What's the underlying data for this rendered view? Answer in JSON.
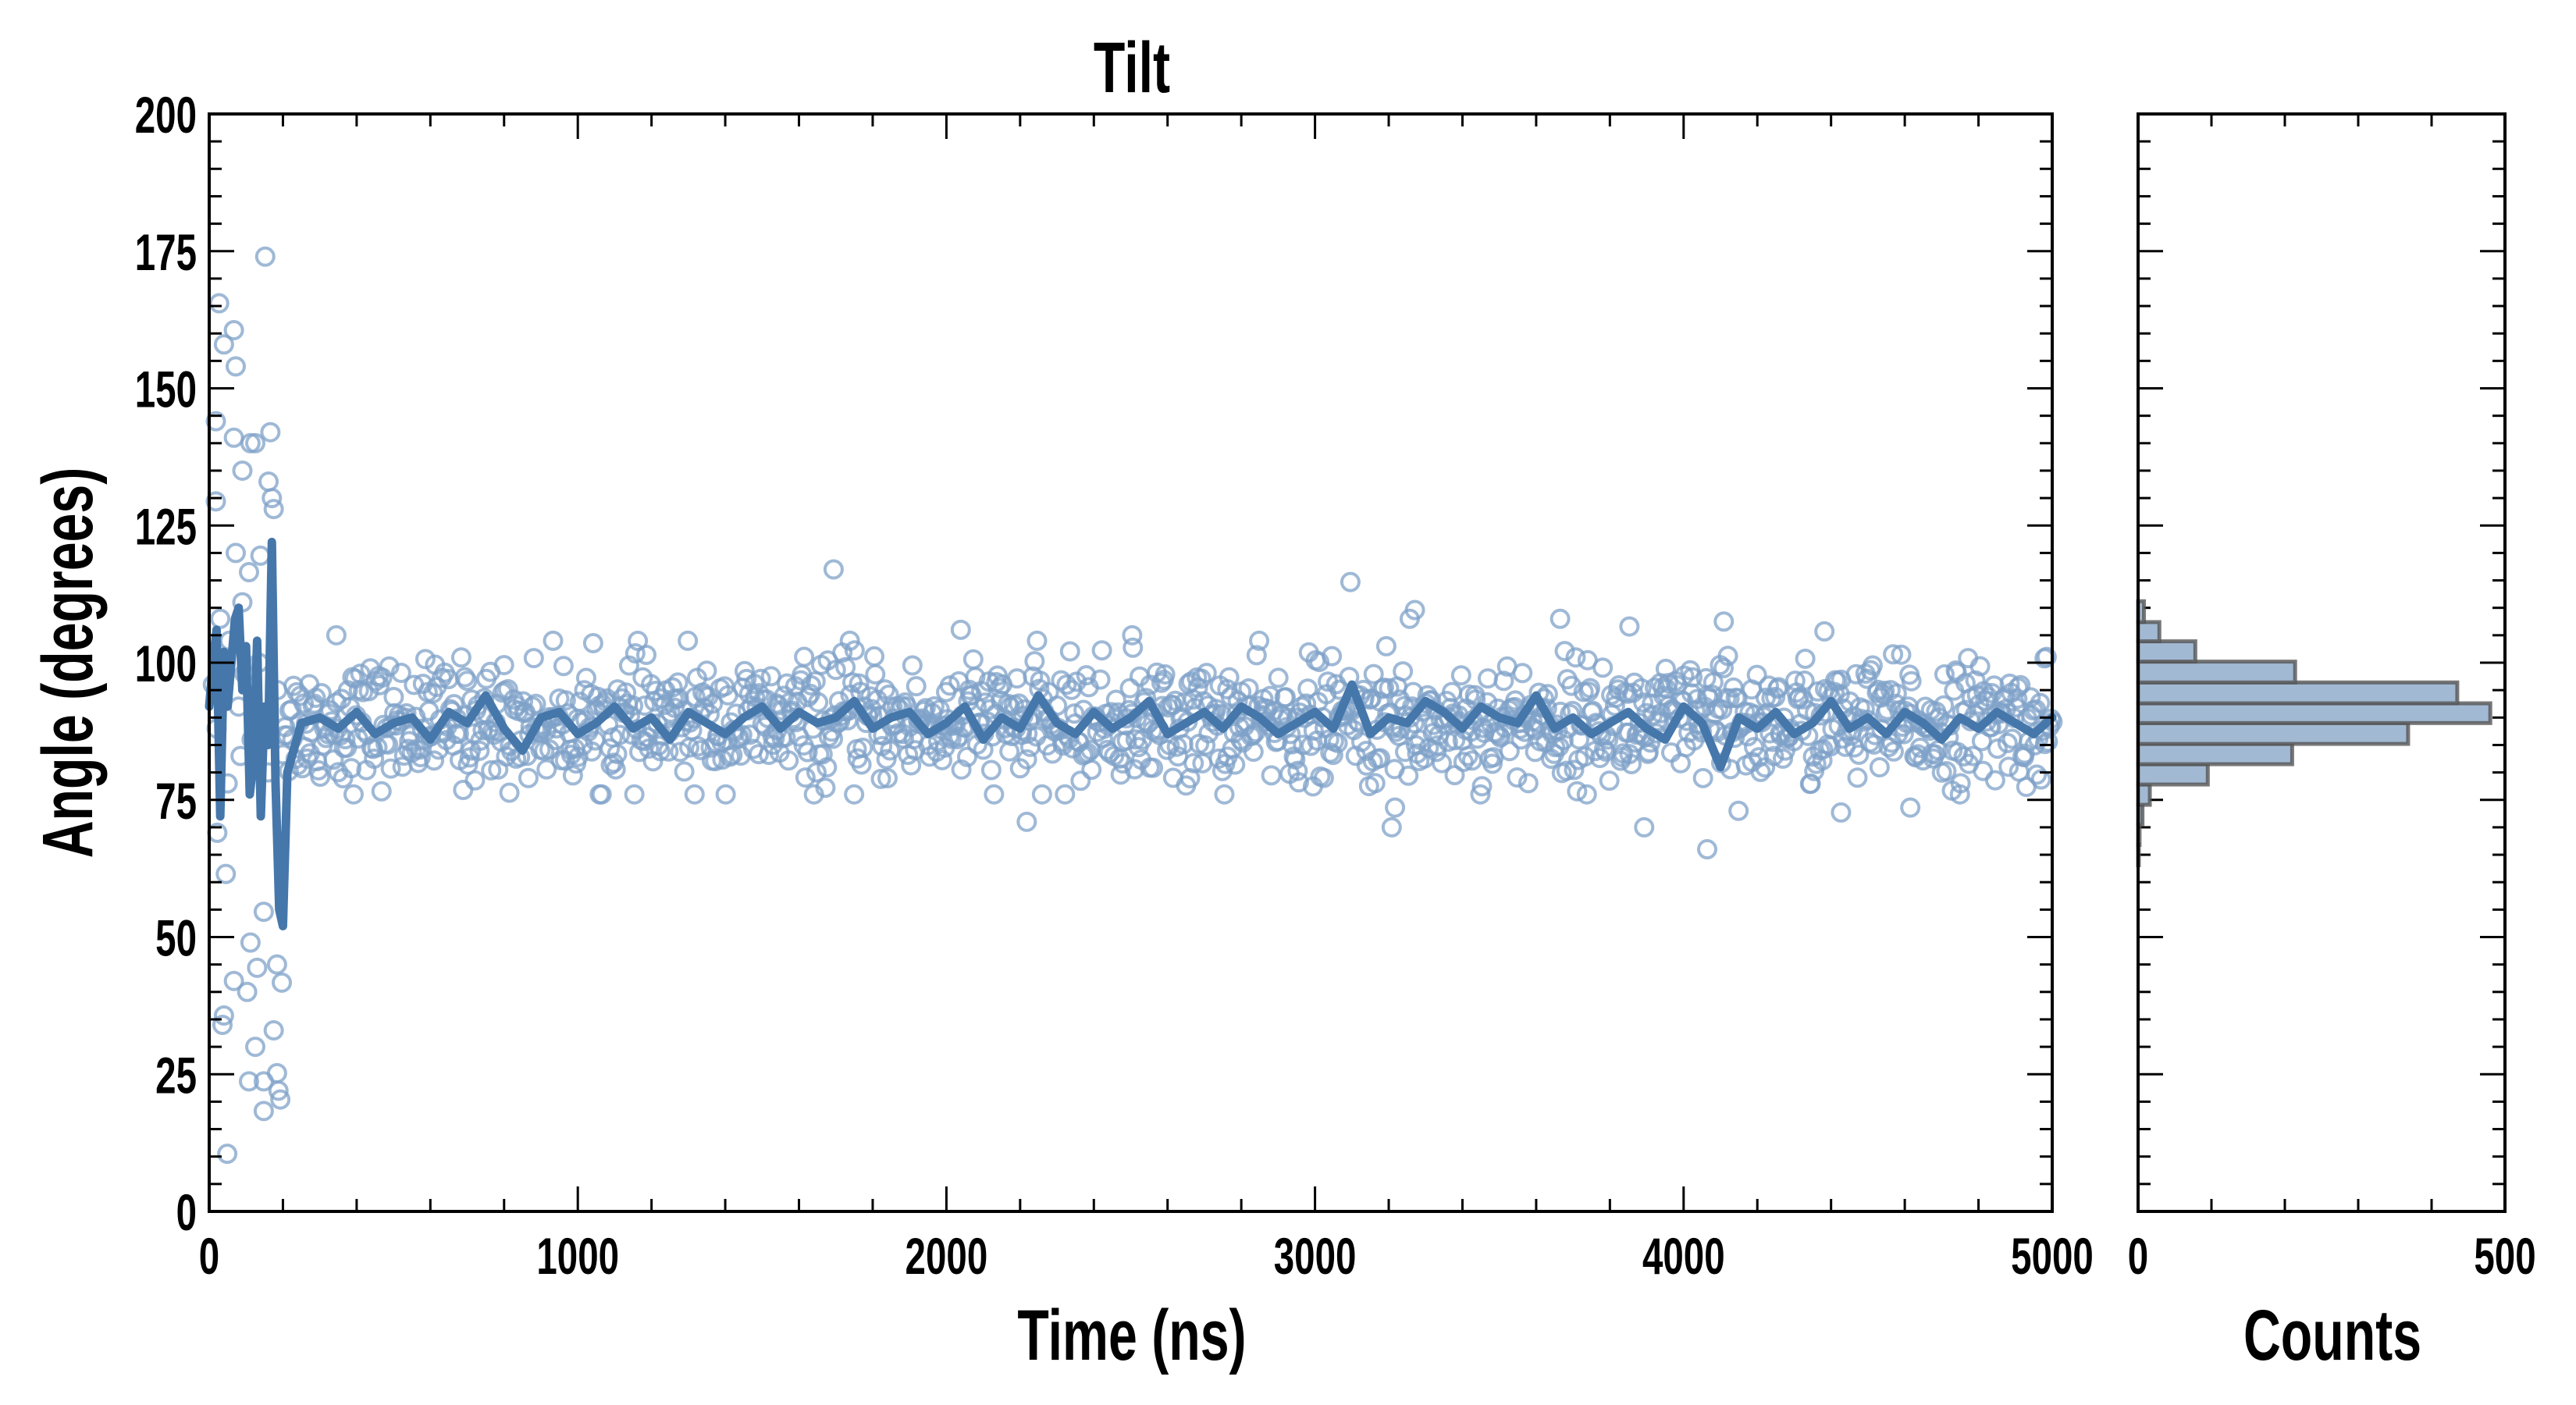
{
  "chart_data": [
    {
      "type": "scatter",
      "title": "Tilt",
      "xlabel": "Time (ns)",
      "ylabel": "Angle (degrees)",
      "xlim": [
        0,
        5000
      ],
      "ylim": [
        0,
        200
      ],
      "xticks": [
        "0",
        "1000",
        "2000",
        "3000",
        "4000",
        "5000"
      ],
      "yticks": [
        "0",
        "25",
        "50",
        "75",
        "100",
        "125",
        "150",
        "175",
        "200"
      ],
      "grid": false,
      "colors": {
        "points": "#7fa1c8",
        "line": "#4677aa"
      },
      "series": [
        {
          "name": "raw angle (points)",
          "explicit_points": [
            [
              27,
              165.5
            ],
            [
              152,
              174
            ],
            [
              67,
              160.6
            ],
            [
              40,
              158
            ],
            [
              72,
              154
            ],
            [
              18,
              144
            ],
            [
              67,
              141
            ],
            [
              112,
              140
            ],
            [
              125,
              140
            ],
            [
              166,
              142
            ],
            [
              90,
              135
            ],
            [
              161,
              133
            ],
            [
              170,
              130
            ],
            [
              18,
              129.4
            ],
            [
              175,
              128
            ],
            [
              72,
              120
            ],
            [
              139,
              119.5
            ],
            [
              108,
              116.5
            ],
            [
              90,
              111
            ],
            [
              30,
              108
            ],
            [
              148,
              54.6
            ],
            [
              112,
              49
            ],
            [
              184,
              45
            ],
            [
              130,
              44.4
            ],
            [
              67,
              42
            ],
            [
              197,
              41.7
            ],
            [
              103,
              40
            ],
            [
              40,
              35.7
            ],
            [
              36,
              34
            ],
            [
              175,
              33
            ],
            [
              125,
              30
            ],
            [
              184,
              25.2
            ],
            [
              108,
              23.7
            ],
            [
              148,
              23.7
            ],
            [
              188,
              22
            ],
            [
              193,
              20.4
            ],
            [
              148,
              18.3
            ],
            [
              49,
              10.5
            ],
            [
              22,
              69
            ],
            [
              45,
              61.5
            ],
            [
              10,
              96
            ],
            [
              20,
              88
            ],
            [
              55,
              104
            ],
            [
              80,
              92
            ],
            [
              95,
              98
            ],
            [
              115,
              86
            ],
            [
              135,
              100
            ],
            [
              150,
              90
            ],
            [
              160,
              80
            ],
            [
              185,
              95
            ],
            [
              50,
              78
            ],
            [
              85,
              83
            ],
            [
              1694,
              117
            ],
            [
              3096,
              114.7
            ],
            [
              2218,
              71
            ],
            [
              4064,
              66
            ],
            [
              3893,
              70
            ],
            [
              3208,
              70
            ],
            [
              3217,
              73.6
            ],
            [
              4427,
              72.7
            ],
            [
              4149,
              73
            ],
            [
              4615,
              73.6
            ],
            [
              4109,
              107.5
            ],
            [
              3665,
              108
            ],
            [
              3257,
              108
            ],
            [
              3271,
              109.6
            ],
            [
              1738,
              104
            ],
            [
              2039,
              106
            ],
            [
              345,
              105
            ],
            [
              2504,
              105
            ],
            [
              4382,
              105.7
            ],
            [
              3853,
              106.6
            ]
          ],
          "bulk": {
            "t_start": 200,
            "t_end": 5000,
            "count": 1300,
            "mean": 89,
            "sd": 5.5
          }
        },
        {
          "name": "running mean (line)",
          "early": [
            [
              0,
              92
            ],
            [
              10,
              100
            ],
            [
              20,
              106
            ],
            [
              30,
              72
            ],
            [
              40,
              102
            ],
            [
              50,
              92
            ],
            [
              60,
              100
            ],
            [
              70,
              108
            ],
            [
              80,
              110
            ],
            [
              90,
              95
            ],
            [
              100,
              103
            ],
            [
              110,
              76
            ],
            [
              120,
              82
            ],
            [
              130,
              104
            ],
            [
              140,
              72
            ],
            [
              150,
              92
            ],
            [
              160,
              85
            ],
            [
              170,
              122
            ],
            [
              180,
              78
            ],
            [
              190,
              55
            ],
            [
              200,
              52
            ],
            [
              212,
              80
            ]
          ],
          "t_start": 250,
          "dt": 50,
          "values": [
            89,
            90,
            88,
            91,
            87,
            89,
            90,
            86,
            91,
            89,
            94,
            88,
            84,
            90,
            91,
            87,
            89,
            92,
            88,
            90,
            86,
            91,
            89,
            87,
            90,
            92,
            88,
            91,
            89,
            90,
            93,
            88,
            90,
            91,
            87,
            89,
            92,
            86,
            90,
            88,
            94,
            89,
            87,
            91,
            88,
            90,
            93,
            87,
            89,
            91,
            88,
            92,
            90,
            87,
            89,
            91,
            88,
            96,
            87,
            90,
            89,
            93,
            91,
            88,
            92,
            90,
            89,
            94,
            88,
            90,
            87,
            89,
            91,
            88,
            86,
            92,
            89,
            81,
            90,
            88,
            91,
            87,
            89,
            93,
            88,
            90,
            87,
            91,
            89,
            86,
            90,
            88,
            91,
            89,
            87,
            90
          ]
        }
      ]
    },
    {
      "type": "bar",
      "orientation": "horizontal",
      "xlabel": "Counts",
      "xlim": [
        0,
        500
      ],
      "xticks": [
        "0",
        "500"
      ],
      "ylim": [
        0,
        200
      ],
      "colors": {
        "fill": "#a2b9d3",
        "edge": "#555555"
      },
      "bin_edges": [
        63.1,
        66.8,
        70.5,
        74.1,
        77.8,
        81.5,
        85.2,
        89.0,
        92.6,
        96.4,
        100.2,
        103.9,
        107.4,
        111.2
      ],
      "counts": [
        1,
        2,
        6,
        16,
        95,
        210,
        368,
        480,
        435,
        214,
        78,
        29,
        8
      ]
    }
  ]
}
